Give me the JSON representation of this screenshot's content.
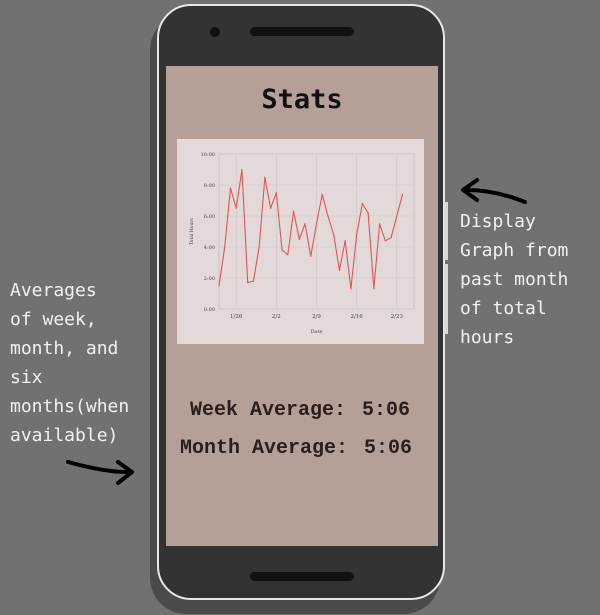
{
  "annotations": {
    "left_lines": [
      "Averages",
      "of week,",
      "month, and",
      "six",
      "months(when",
      "available)"
    ],
    "right_lines": [
      "Display",
      "Graph from",
      "past month",
      "of total",
      "hours"
    ]
  },
  "screen": {
    "title": "Stats",
    "week_label": "Week Average:",
    "week_value": "5:06",
    "month_label": "Month Average:",
    "month_value": "5:06"
  },
  "colors": {
    "background": "#737170",
    "screen": "#b5a098",
    "chart_bg": "#e3d9d8",
    "line": "#e05555"
  },
  "chart_data": {
    "type": "line",
    "title": "",
    "xlabel": "Date",
    "ylabel": "Total Hours",
    "ylim": [
      0,
      10
    ],
    "yticks": [
      "0:00",
      "2:00",
      "4:00",
      "6:00",
      "8:00",
      "10:00"
    ],
    "xticks": [
      "1/26",
      "2/2",
      "2/9",
      "2/16",
      "2/23"
    ],
    "xlim": [
      0,
      34
    ],
    "xtick_positions": [
      3,
      10,
      17,
      24,
      31
    ],
    "grid": true,
    "series": [
      {
        "values": [
          1.5,
          4.0,
          7.8,
          6.5,
          9.0,
          1.7,
          1.8,
          4.0,
          8.5,
          6.5,
          7.5,
          3.8,
          3.5,
          6.3,
          4.5,
          5.5,
          3.4,
          5.5,
          7.4,
          6.0,
          4.8,
          2.5,
          4.4,
          1.3,
          4.8,
          6.8,
          6.2,
          1.3,
          5.5,
          4.4,
          4.6,
          7.4
        ],
        "x": [
          0,
          1,
          2,
          3,
          4,
          5,
          6,
          7,
          8,
          9,
          10,
          11,
          12,
          13,
          14,
          15,
          16,
          17,
          18,
          19,
          20,
          21,
          22,
          23,
          24,
          25,
          26,
          27,
          28,
          29,
          30,
          32
        ]
      }
    ]
  }
}
